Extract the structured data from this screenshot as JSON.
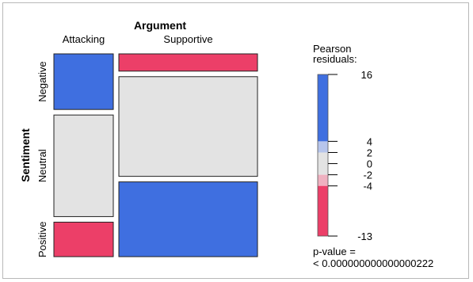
{
  "chart_data": {
    "type": "mosaic",
    "title": "Argument",
    "row_variable": "Sentiment",
    "column_variable": "Argument",
    "columns": [
      "Attacking",
      "Supportive"
    ],
    "rows": [
      "Negative",
      "Neutral",
      "Positive"
    ],
    "column_shares": [
      0.3,
      0.7
    ],
    "cell_shares": [
      [
        0.29,
        0.53,
        0.18
      ],
      [
        0.09,
        0.52,
        0.39
      ]
    ],
    "cell_fill": [
      [
        "blue",
        "gray",
        "red"
      ],
      [
        "red",
        "gray",
        "blue"
      ]
    ],
    "legend": {
      "title": "Pearson residuals:",
      "ticks": [
        16,
        4,
        2,
        0,
        -2,
        -4,
        -13
      ],
      "min": -13,
      "max": 16,
      "bands": [
        {
          "from": 4,
          "to": 16,
          "color": "#3f6fe0"
        },
        {
          "from": 2,
          "to": 4,
          "color": "#b7c5ec"
        },
        {
          "from": -2,
          "to": 2,
          "color": "#e3e3e3"
        },
        {
          "from": -4,
          "to": -2,
          "color": "#efb1c0"
        },
        {
          "from": -13,
          "to": -4,
          "color": "#ec3f68"
        }
      ]
    },
    "p_value_label": "p-value =",
    "p_value": "< 0.000000000000000222",
    "colors": {
      "blue": "#3f6fe0",
      "gray": "#e3e3e3",
      "red": "#ec3f68",
      "border": "#222222"
    }
  }
}
